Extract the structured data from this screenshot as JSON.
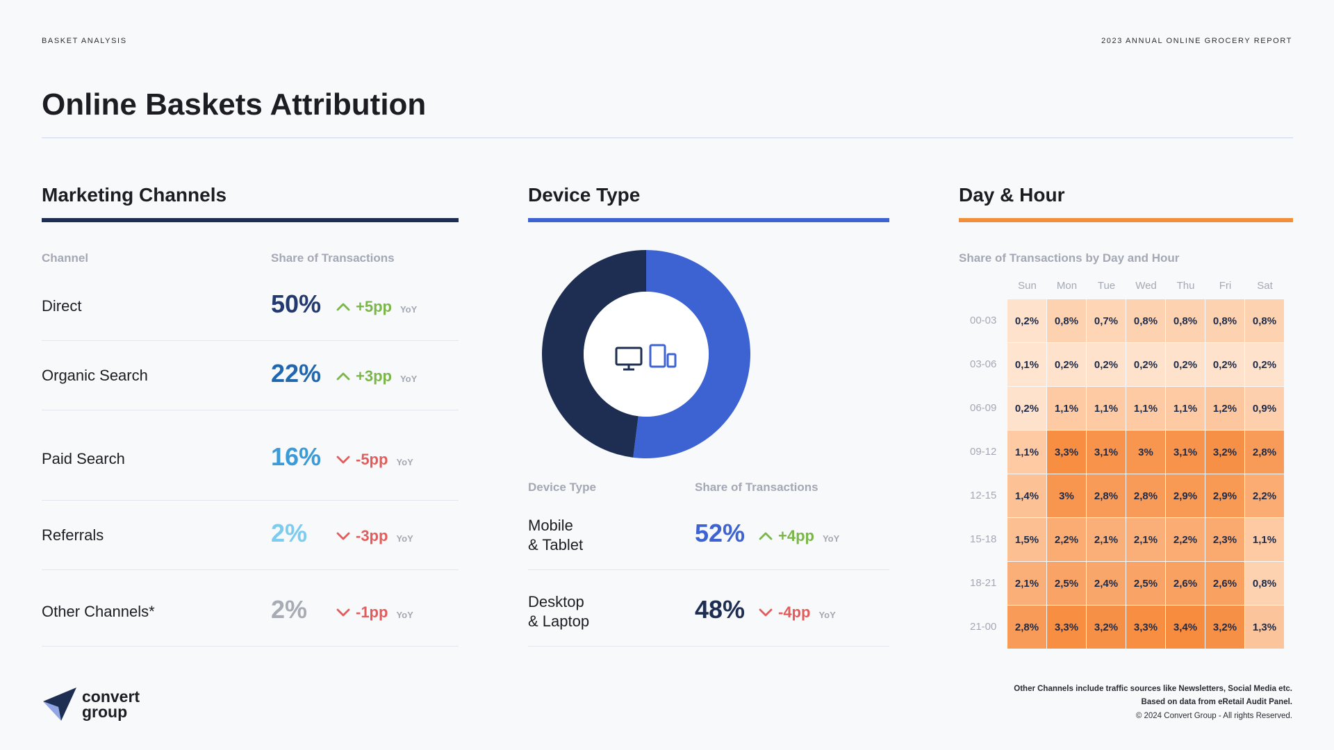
{
  "header": {
    "kicker_left": "BASKET ANALYSIS",
    "kicker_right": "2023 ANNUAL ONLINE GROCERY REPORT",
    "title": "Online Baskets Attribution"
  },
  "colors": {
    "navy": "#1e2e53",
    "blue": "#3d63d2",
    "orange": "#f28f3b",
    "green": "#7ab648",
    "red": "#e35b5b"
  },
  "marketing": {
    "title": "Marketing Channels",
    "col_channel": "Channel",
    "col_share": "Share of Transactions",
    "rows": [
      {
        "label": "Direct",
        "value": "50%",
        "delta": "+5pp",
        "direction": "up",
        "yoy": "YoY",
        "color": "#23396f"
      },
      {
        "label": "Organic Search",
        "value": "22%",
        "delta": "+3pp",
        "direction": "up",
        "yoy": "YoY",
        "color": "#1f67b1"
      },
      {
        "label": "Paid Search",
        "value": "16%",
        "delta": "-5pp",
        "direction": "down",
        "yoy": "YoY",
        "color": "#3b9ad8"
      },
      {
        "label": "Referrals",
        "value": "2%",
        "delta": "-3pp",
        "direction": "down",
        "yoy": "YoY",
        "color": "#7ccbf0"
      },
      {
        "label": "Other Channels*",
        "value": "2%",
        "delta": "-1pp",
        "direction": "down",
        "yoy": "YoY",
        "color": "#a7abb4"
      }
    ]
  },
  "device": {
    "title": "Device Type",
    "col_type": "Device Type",
    "col_share": "Share of Transactions",
    "icons": [
      "desktop-icon",
      "tablet-mobile-icon"
    ],
    "rows": [
      {
        "label_line1": "Mobile",
        "label_line2": "& Tablet",
        "value": "52%",
        "delta": "+4pp",
        "direction": "up",
        "yoy": "YoY",
        "color": "#3d63d2"
      },
      {
        "label_line1": "Desktop",
        "label_line2": "& Laptop",
        "value": "48%",
        "delta": "-4pp",
        "direction": "down",
        "yoy": "YoY",
        "color": "#1e2e53"
      }
    ]
  },
  "dayhour": {
    "title": "Day & Hour",
    "subtitle": "Share of Transactions by Day and Hour"
  },
  "chart_data": [
    {
      "type": "pie",
      "labels": [
        "Mobile & Tablet",
        "Desktop & Laptop"
      ],
      "values": [
        52,
        48
      ],
      "colors": [
        "#3d63d2",
        "#1e2e53"
      ]
    },
    {
      "type": "heatmap",
      "x": [
        "Sun",
        "Mon",
        "Tue",
        "Wed",
        "Thu",
        "Fri",
        "Sat"
      ],
      "y": [
        "00-03",
        "03-06",
        "06-09",
        "09-12",
        "12-15",
        "15-18",
        "18-21",
        "21-00"
      ],
      "values": [
        [
          0.2,
          0.8,
          0.7,
          0.8,
          0.8,
          0.8,
          0.8
        ],
        [
          0.1,
          0.2,
          0.2,
          0.2,
          0.2,
          0.2,
          0.2
        ],
        [
          0.2,
          1.1,
          1.1,
          1.1,
          1.1,
          1.2,
          0.9
        ],
        [
          1.1,
          3.3,
          3.1,
          3,
          3.1,
          3.2,
          2.8
        ],
        [
          1.4,
          3,
          2.8,
          2.8,
          2.9,
          2.9,
          2.2
        ],
        [
          1.5,
          2.2,
          2.1,
          2.1,
          2.2,
          2.3,
          1.1
        ],
        [
          2.1,
          2.5,
          2.4,
          2.5,
          2.6,
          2.6,
          0.8
        ],
        [
          2.8,
          3.3,
          3.2,
          3.3,
          3.4,
          3.2,
          1.3
        ]
      ],
      "labels": [
        [
          "0,2%",
          "0,8%",
          "0,7%",
          "0,8%",
          "0,8%",
          "0,8%",
          "0,8%"
        ],
        [
          "0,1%",
          "0,2%",
          "0,2%",
          "0,2%",
          "0,2%",
          "0,2%",
          "0,2%"
        ],
        [
          "0,2%",
          "1,1%",
          "1,1%",
          "1,1%",
          "1,1%",
          "1,2%",
          "0,9%"
        ],
        [
          "1,1%",
          "3,3%",
          "3,1%",
          "3%",
          "3,1%",
          "3,2%",
          "2,8%"
        ],
        [
          "1,4%",
          "3%",
          "2,8%",
          "2,8%",
          "2,9%",
          "2,9%",
          "2,2%"
        ],
        [
          "1,5%",
          "2,2%",
          "2,1%",
          "2,1%",
          "2,2%",
          "2,3%",
          "1,1%"
        ],
        [
          "2,1%",
          "2,5%",
          "2,4%",
          "2,5%",
          "2,6%",
          "2,6%",
          "0,8%"
        ],
        [
          "2,8%",
          "3,3%",
          "3,2%",
          "3,3%",
          "3,4%",
          "3,2%",
          "1,3%"
        ]
      ]
    }
  ],
  "footer": {
    "note1": "Other Channels include traffic sources like Newsletters, Social Media etc.",
    "note2": "Based on data from eRetail Audit Panel.",
    "copyright": "© 2024 Convert Group - All rights Reserved.",
    "logo_line1": "convert",
    "logo_line2": "group"
  }
}
